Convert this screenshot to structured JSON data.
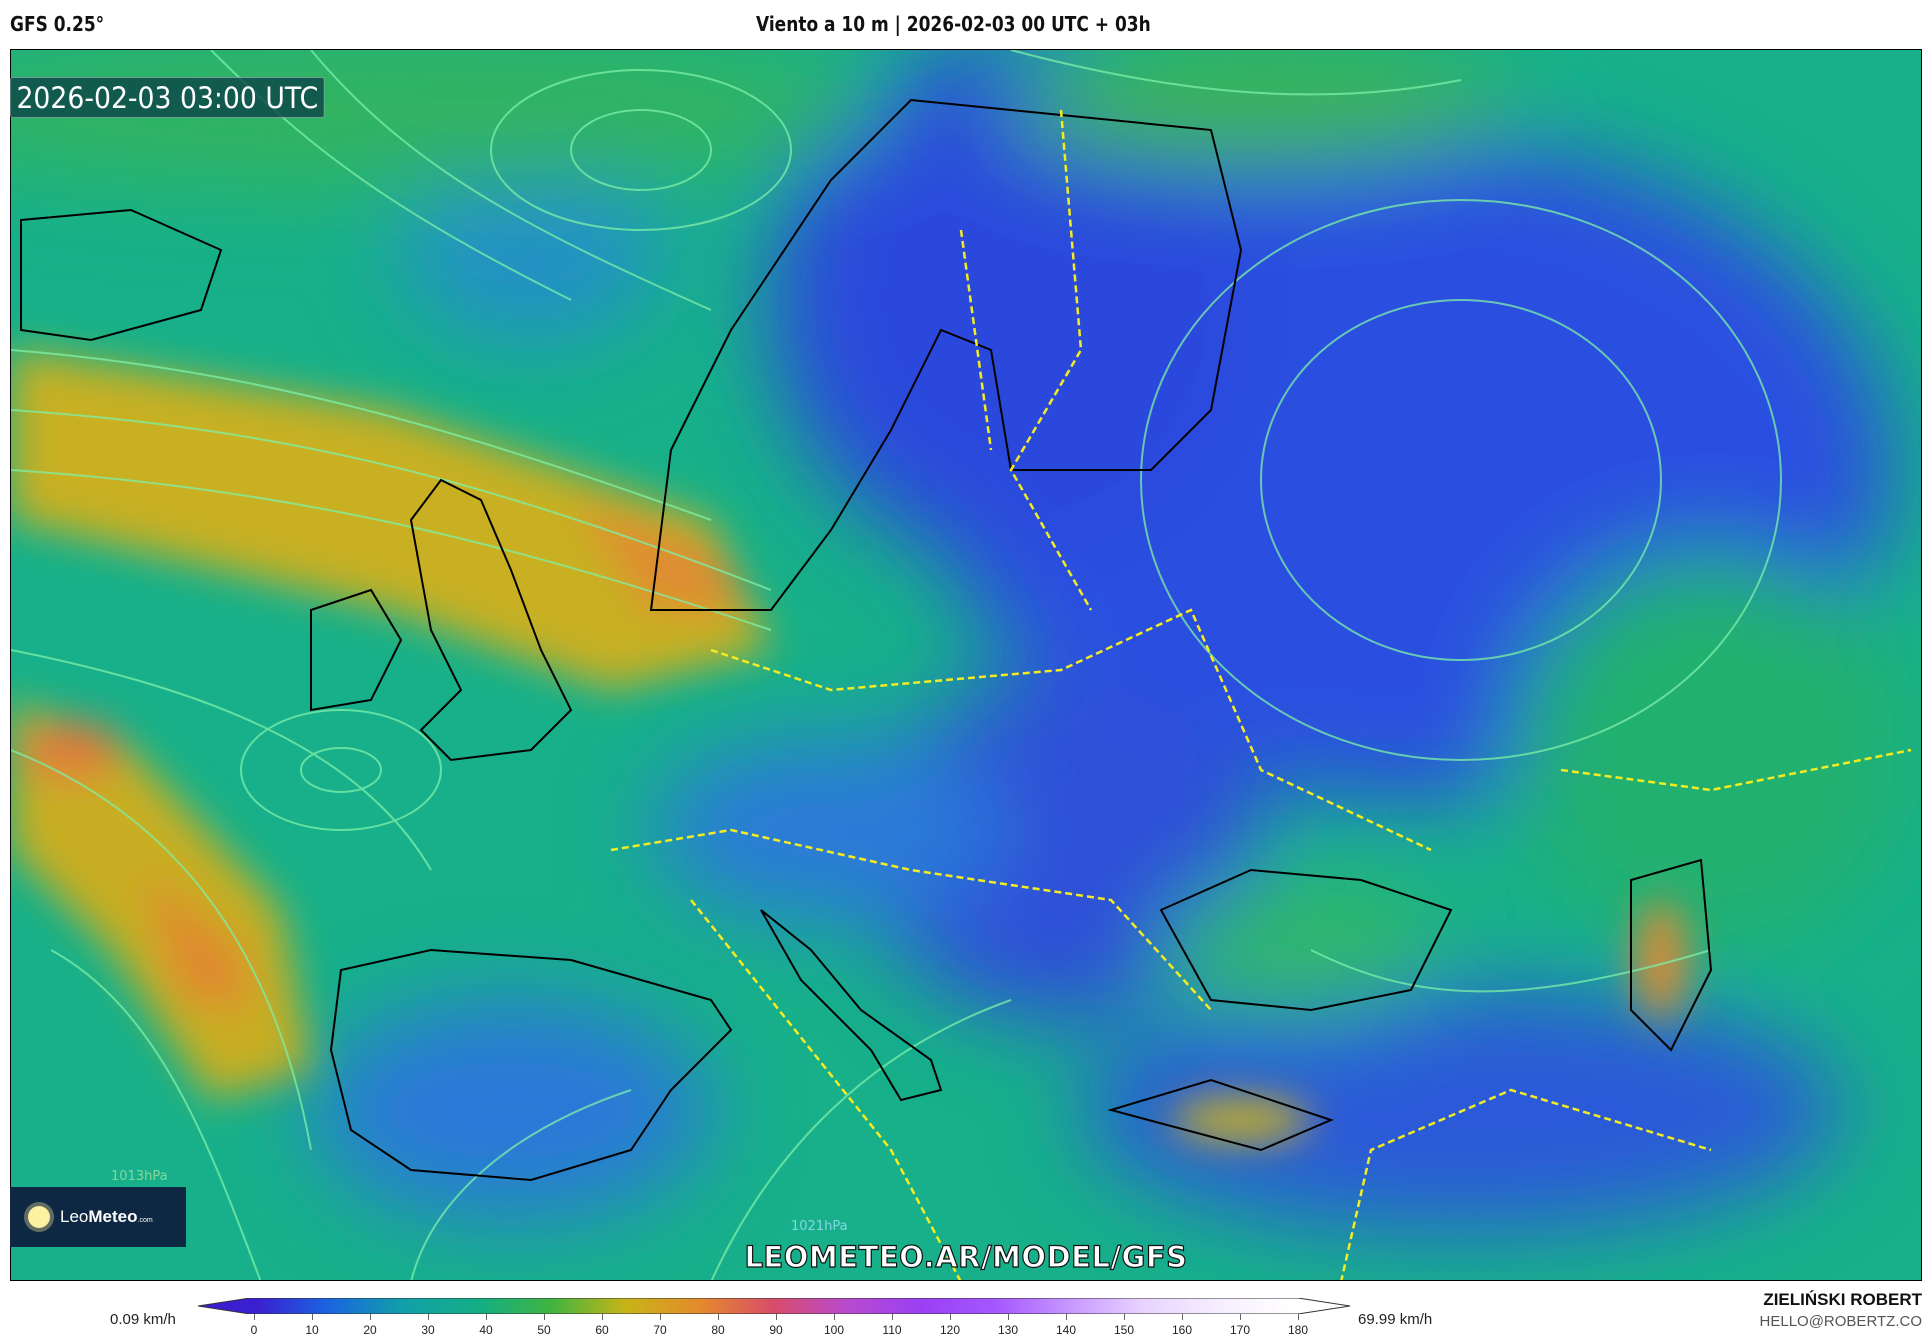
{
  "header": {
    "model": "GFS 0.25°",
    "title": "Viento a 10 m | 2026-02-03 00 UTC + 03h"
  },
  "map": {
    "timestamp": "2026-02-03 03:00 UTC",
    "watermark": "LEOMETEO.AR/MODEL/GFS",
    "isobar_label": "1013hPa",
    "isobar_label_2": "1021hPa"
  },
  "logo": {
    "text_light": "Leo",
    "text_bold": "Meteo",
    "suffix": ".com",
    "icon": "sun-icon"
  },
  "colorbar": {
    "unit": "km/h",
    "min_label": "0.09 km/h",
    "max_label": "69.99 km/h",
    "ticks": [
      "0",
      "10",
      "20",
      "30",
      "40",
      "50",
      "60",
      "70",
      "80",
      "90",
      "100",
      "110",
      "120",
      "130",
      "140",
      "150",
      "160",
      "170",
      "180"
    ],
    "colors": [
      "#3a1fd0",
      "#1a66e0",
      "#12a0a8",
      "#13ae86",
      "#40b440",
      "#c8b418",
      "#e48a2c",
      "#d84c6a",
      "#b84ad0",
      "#9a40f4",
      "#a458ff",
      "#c898ff",
      "#e8d4ff",
      "#f6eeff",
      "#ffffff"
    ]
  },
  "credits": {
    "author": "ZIELIŃSKI ROBERT",
    "email": "HELLO@ROBERTZ.CO"
  }
}
